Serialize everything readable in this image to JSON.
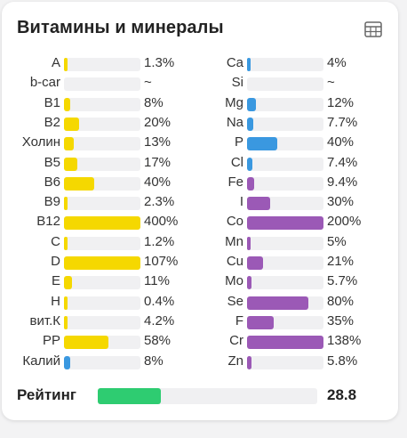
{
  "title": "Витамины и минералы",
  "icons": {
    "table": "table-icon"
  },
  "colors": {
    "vitamin": "#f5d800",
    "blue": "#3a98e0",
    "mineral": "#9b59b6",
    "track": "#f0f0f2",
    "rating": "#2ecc71"
  },
  "left_items": [
    {
      "label": "A",
      "value": "1.3%",
      "fill": 0.013,
      "color": "vitamin"
    },
    {
      "label": "b-car",
      "value": "~",
      "fill": 0,
      "color": "vitamin"
    },
    {
      "label": "B1",
      "value": "8%",
      "fill": 0.08,
      "color": "vitamin"
    },
    {
      "label": "B2",
      "value": "20%",
      "fill": 0.2,
      "color": "vitamin"
    },
    {
      "label": "Холин",
      "value": "13%",
      "fill": 0.13,
      "color": "vitamin"
    },
    {
      "label": "B5",
      "value": "17%",
      "fill": 0.17,
      "color": "vitamin"
    },
    {
      "label": "B6",
      "value": "40%",
      "fill": 0.4,
      "color": "vitamin"
    },
    {
      "label": "B9",
      "value": "2.3%",
      "fill": 0.023,
      "color": "vitamin"
    },
    {
      "label": "B12",
      "value": "400%",
      "fill": 1.0,
      "color": "vitamin"
    },
    {
      "label": "C",
      "value": "1.2%",
      "fill": 0.012,
      "color": "vitamin"
    },
    {
      "label": "D",
      "value": "107%",
      "fill": 1.0,
      "color": "vitamin"
    },
    {
      "label": "E",
      "value": "11%",
      "fill": 0.11,
      "color": "vitamin"
    },
    {
      "label": "H",
      "value": "0.4%",
      "fill": 0.004,
      "color": "vitamin"
    },
    {
      "label": "вит.К",
      "value": "4.2%",
      "fill": 0.042,
      "color": "vitamin"
    },
    {
      "label": "PP",
      "value": "58%",
      "fill": 0.58,
      "color": "vitamin"
    },
    {
      "label": "Калий",
      "value": "8%",
      "fill": 0.08,
      "color": "blue"
    }
  ],
  "right_items": [
    {
      "label": "Ca",
      "value": "4%",
      "fill": 0.04,
      "color": "blue"
    },
    {
      "label": "Si",
      "value": "~",
      "fill": 0,
      "color": "blue"
    },
    {
      "label": "Mg",
      "value": "12%",
      "fill": 0.12,
      "color": "blue"
    },
    {
      "label": "Na",
      "value": "7.7%",
      "fill": 0.077,
      "color": "blue"
    },
    {
      "label": "P",
      "value": "40%",
      "fill": 0.4,
      "color": "blue"
    },
    {
      "label": "Cl",
      "value": "7.4%",
      "fill": 0.074,
      "color": "blue"
    },
    {
      "label": "Fe",
      "value": "9.4%",
      "fill": 0.094,
      "color": "mineral"
    },
    {
      "label": "I",
      "value": "30%",
      "fill": 0.3,
      "color": "mineral"
    },
    {
      "label": "Co",
      "value": "200%",
      "fill": 1.0,
      "color": "mineral"
    },
    {
      "label": "Mn",
      "value": "5%",
      "fill": 0.05,
      "color": "mineral"
    },
    {
      "label": "Cu",
      "value": "21%",
      "fill": 0.21,
      "color": "mineral"
    },
    {
      "label": "Mo",
      "value": "5.7%",
      "fill": 0.057,
      "color": "mineral"
    },
    {
      "label": "Se",
      "value": "80%",
      "fill": 0.8,
      "color": "mineral"
    },
    {
      "label": "F",
      "value": "35%",
      "fill": 0.35,
      "color": "mineral"
    },
    {
      "label": "Cr",
      "value": "138%",
      "fill": 1.0,
      "color": "mineral"
    },
    {
      "label": "Zn",
      "value": "5.8%",
      "fill": 0.058,
      "color": "mineral"
    }
  ],
  "rating": {
    "label": "Рейтинг",
    "value": "28.8",
    "fill": 0.288
  }
}
